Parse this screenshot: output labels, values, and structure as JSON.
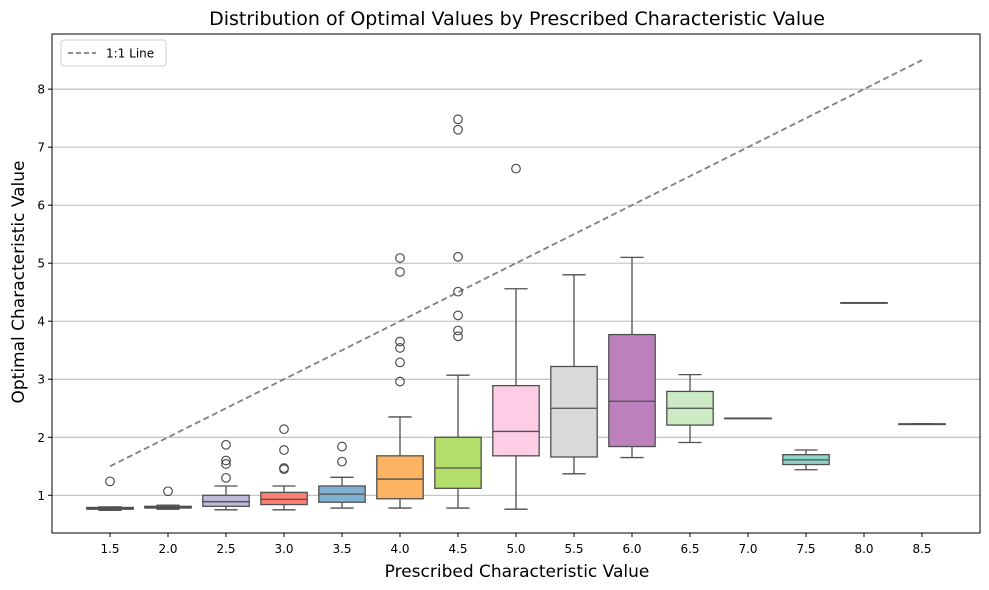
{
  "chart_data": {
    "type": "box",
    "title": "Distribution of Optimal Values by Prescribed Characteristic Value",
    "xlabel": "Prescribed Characteristic Value",
    "ylabel": "Optimal Characteristic Value",
    "categories": [
      "1.5",
      "2.0",
      "2.5",
      "3.0",
      "3.5",
      "4.0",
      "4.5",
      "5.0",
      "5.5",
      "6.0",
      "6.5",
      "7.0",
      "7.5",
      "8.0",
      "8.5"
    ],
    "ylim": [
      0.35,
      8.95
    ],
    "yticks": [
      1,
      2,
      3,
      4,
      5,
      6,
      7,
      8
    ],
    "grid": "y",
    "legend": {
      "position": "top-left",
      "entries": [
        {
          "label": "1:1 Line",
          "style": "dashed",
          "color": "#808080"
        }
      ]
    },
    "reference_line": {
      "label": "1:1 Line",
      "from": [
        1.5,
        1.5
      ],
      "to": [
        8.5,
        8.5
      ],
      "color": "#808080"
    },
    "boxes": [
      {
        "category": "1.5",
        "whisker_low": 0.74,
        "q1": 0.76,
        "median": 0.77,
        "q3": 0.79,
        "whisker_high": 0.8,
        "outliers": [
          1.24
        ],
        "color": "#8dd3c7"
      },
      {
        "category": "2.0",
        "whisker_low": 0.76,
        "q1": 0.78,
        "median": 0.8,
        "q3": 0.81,
        "whisker_high": 0.83,
        "outliers": [
          1.07
        ],
        "color": "#ffffb3"
      },
      {
        "category": "2.5",
        "whisker_low": 0.75,
        "q1": 0.81,
        "median": 0.89,
        "q3": 1.0,
        "whisker_high": 1.16,
        "outliers": [
          1.3,
          1.54,
          1.6,
          1.87
        ],
        "color": "#bebada"
      },
      {
        "category": "3.0",
        "whisker_low": 0.75,
        "q1": 0.84,
        "median": 0.93,
        "q3": 1.05,
        "whisker_high": 1.16,
        "outliers": [
          1.45,
          1.47,
          1.78,
          2.14
        ],
        "color": "#fb8072"
      },
      {
        "category": "3.5",
        "whisker_low": 0.78,
        "q1": 0.88,
        "median": 1.02,
        "q3": 1.16,
        "whisker_high": 1.31,
        "outliers": [
          1.58,
          1.84
        ],
        "color": "#80b1d3"
      },
      {
        "category": "4.0",
        "whisker_low": 0.78,
        "q1": 0.94,
        "median": 1.28,
        "q3": 1.68,
        "whisker_high": 2.35,
        "outliers": [
          2.96,
          3.29,
          3.54,
          3.65,
          4.85,
          5.09
        ],
        "color": "#fdb462"
      },
      {
        "category": "4.5",
        "whisker_low": 0.78,
        "q1": 1.12,
        "median": 1.47,
        "q3": 2.0,
        "whisker_high": 3.07,
        "outliers": [
          3.74,
          3.84,
          4.1,
          4.51,
          5.11,
          7.3,
          7.48
        ],
        "color": "#b3de69"
      },
      {
        "category": "5.0",
        "whisker_low": 0.76,
        "q1": 1.68,
        "median": 2.1,
        "q3": 2.89,
        "whisker_high": 4.56,
        "outliers": [
          6.63
        ],
        "color": "#fccde5"
      },
      {
        "category": "5.5",
        "whisker_low": 1.37,
        "q1": 1.66,
        "median": 2.5,
        "q3": 3.22,
        "whisker_high": 4.8,
        "outliers": [],
        "color": "#d9d9d9"
      },
      {
        "category": "6.0",
        "whisker_low": 1.65,
        "q1": 1.84,
        "median": 2.62,
        "q3": 3.77,
        "whisker_high": 5.1,
        "outliers": [],
        "color": "#bc80bd"
      },
      {
        "category": "6.5",
        "whisker_low": 1.91,
        "q1": 2.21,
        "median": 2.5,
        "q3": 2.79,
        "whisker_high": 3.08,
        "outliers": [],
        "color": "#ccebc5"
      },
      {
        "category": "7.0",
        "whisker_low": 2.33,
        "q1": 2.33,
        "median": 2.33,
        "q3": 2.33,
        "whisker_high": 2.33,
        "outliers": [],
        "color": "#ffed6f"
      },
      {
        "category": "7.5",
        "whisker_low": 1.44,
        "q1": 1.53,
        "median": 1.61,
        "q3": 1.7,
        "whisker_high": 1.78,
        "outliers": [],
        "color": "#8dd3c7"
      },
      {
        "category": "8.0",
        "whisker_low": 4.32,
        "q1": 4.32,
        "median": 4.32,
        "q3": 4.32,
        "whisker_high": 4.32,
        "outliers": [],
        "color": "#ffffb3"
      },
      {
        "category": "8.5",
        "whisker_low": 2.23,
        "q1": 2.23,
        "median": 2.23,
        "q3": 2.23,
        "whisker_high": 2.23,
        "outliers": [],
        "color": "#bebada"
      }
    ]
  }
}
